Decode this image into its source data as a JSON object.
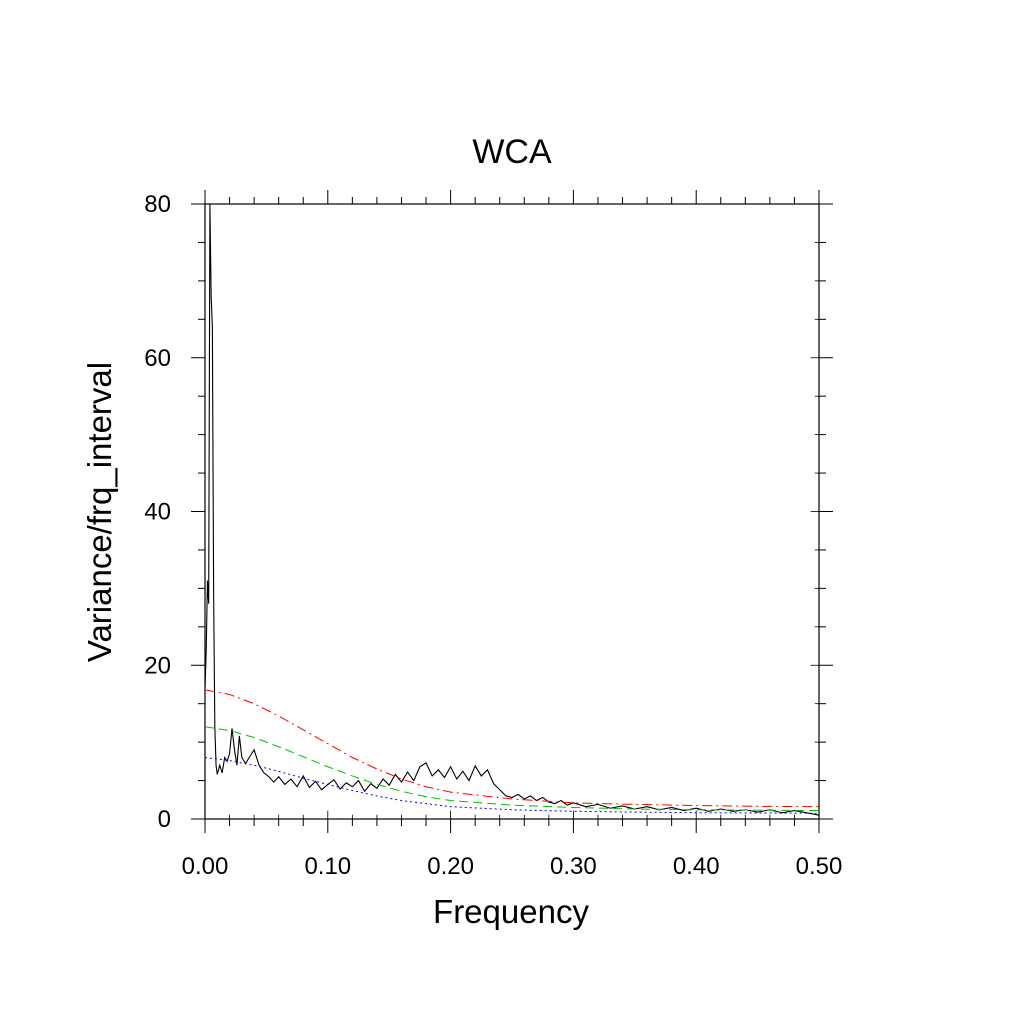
{
  "chart_data": {
    "type": "line",
    "title": "WCA",
    "xlabel": "Frequency",
    "ylabel": "Variance/frq_interval",
    "xlim": [
      0,
      0.5
    ],
    "ylim": [
      0,
      80
    ],
    "x_ticks": [
      0,
      0.1,
      0.2,
      0.3,
      0.4,
      0.5
    ],
    "x_tick_labels": [
      "0.00",
      "0.10",
      "0.20",
      "0.30",
      "0.40",
      "0.50"
    ],
    "y_ticks": [
      0,
      20,
      40,
      60,
      80
    ],
    "y_tick_labels": [
      "0",
      "20",
      "40",
      "60",
      "80"
    ],
    "legend": "none",
    "grid": false,
    "series": [
      {
        "color": "#000000",
        "style": "solid",
        "points": [
          [
            0.0,
            17
          ],
          [
            0.001,
            22
          ],
          [
            0.002,
            31
          ],
          [
            0.003,
            28
          ],
          [
            0.004,
            80
          ],
          [
            0.005,
            68
          ],
          [
            0.006,
            64
          ],
          [
            0.007,
            30
          ],
          [
            0.008,
            12
          ],
          [
            0.009,
            7
          ],
          [
            0.01,
            5.8
          ],
          [
            0.012,
            7
          ],
          [
            0.014,
            6
          ],
          [
            0.016,
            8
          ],
          [
            0.018,
            7.5
          ],
          [
            0.02,
            8.5
          ],
          [
            0.022,
            11.8
          ],
          [
            0.024,
            9
          ],
          [
            0.026,
            7
          ],
          [
            0.028,
            10.8
          ],
          [
            0.03,
            8
          ],
          [
            0.033,
            7.2
          ],
          [
            0.036,
            8
          ],
          [
            0.04,
            9
          ],
          [
            0.044,
            7
          ],
          [
            0.048,
            6
          ],
          [
            0.052,
            5.5
          ],
          [
            0.056,
            4.8
          ],
          [
            0.06,
            5.5
          ],
          [
            0.065,
            4.5
          ],
          [
            0.07,
            5.2
          ],
          [
            0.075,
            4.2
          ],
          [
            0.08,
            5.6
          ],
          [
            0.085,
            4.1
          ],
          [
            0.09,
            4.9
          ],
          [
            0.095,
            3.8
          ],
          [
            0.1,
            4.5
          ],
          [
            0.105,
            5.1
          ],
          [
            0.11,
            3.9
          ],
          [
            0.115,
            4.7
          ],
          [
            0.12,
            4.2
          ],
          [
            0.125,
            5.0
          ],
          [
            0.13,
            3.6
          ],
          [
            0.135,
            4.6
          ],
          [
            0.14,
            4.0
          ],
          [
            0.145,
            5.2
          ],
          [
            0.15,
            4.4
          ],
          [
            0.155,
            5.8
          ],
          [
            0.16,
            4.8
          ],
          [
            0.165,
            6.1
          ],
          [
            0.17,
            5.0
          ],
          [
            0.175,
            6.8
          ],
          [
            0.18,
            7.3
          ],
          [
            0.185,
            5.6
          ],
          [
            0.19,
            6.4
          ],
          [
            0.195,
            5.4
          ],
          [
            0.2,
            6.8
          ],
          [
            0.205,
            5.2
          ],
          [
            0.21,
            6.2
          ],
          [
            0.215,
            5.0
          ],
          [
            0.22,
            6.9
          ],
          [
            0.225,
            5.6
          ],
          [
            0.23,
            6.4
          ],
          [
            0.235,
            4.6
          ],
          [
            0.24,
            3.8
          ],
          [
            0.245,
            3.0
          ],
          [
            0.25,
            2.8
          ],
          [
            0.255,
            3.2
          ],
          [
            0.26,
            2.6
          ],
          [
            0.265,
            3.0
          ],
          [
            0.27,
            2.4
          ],
          [
            0.275,
            2.8
          ],
          [
            0.28,
            2.2
          ],
          [
            0.285,
            2.0
          ],
          [
            0.29,
            2.4
          ],
          [
            0.295,
            1.8
          ],
          [
            0.3,
            2.1
          ],
          [
            0.31,
            1.6
          ],
          [
            0.32,
            1.9
          ],
          [
            0.33,
            1.4
          ],
          [
            0.34,
            1.7
          ],
          [
            0.35,
            1.3
          ],
          [
            0.36,
            1.6
          ],
          [
            0.37,
            1.2
          ],
          [
            0.38,
            1.5
          ],
          [
            0.39,
            1.1
          ],
          [
            0.4,
            1.4
          ],
          [
            0.41,
            1.0
          ],
          [
            0.42,
            1.3
          ],
          [
            0.43,
            1.0
          ],
          [
            0.44,
            1.2
          ],
          [
            0.45,
            0.9
          ],
          [
            0.46,
            1.2
          ],
          [
            0.47,
            0.8
          ],
          [
            0.48,
            1.1
          ],
          [
            0.49,
            0.8
          ],
          [
            0.5,
            0.5
          ]
        ]
      },
      {
        "color": "#ff0000",
        "style": "dash-dot",
        "points": [
          [
            0.0,
            16.8
          ],
          [
            0.02,
            16.2
          ],
          [
            0.04,
            15.0
          ],
          [
            0.06,
            13.4
          ],
          [
            0.08,
            11.6
          ],
          [
            0.1,
            9.8
          ],
          [
            0.12,
            8.0
          ],
          [
            0.14,
            6.5
          ],
          [
            0.16,
            5.2
          ],
          [
            0.18,
            4.2
          ],
          [
            0.2,
            3.5
          ],
          [
            0.25,
            2.6
          ],
          [
            0.3,
            2.1
          ],
          [
            0.35,
            1.9
          ],
          [
            0.4,
            1.75
          ],
          [
            0.45,
            1.65
          ],
          [
            0.5,
            1.6
          ]
        ]
      },
      {
        "color": "#00c000",
        "style": "dashed",
        "points": [
          [
            0.0,
            12.0
          ],
          [
            0.02,
            11.5
          ],
          [
            0.04,
            10.6
          ],
          [
            0.06,
            9.4
          ],
          [
            0.08,
            8.1
          ],
          [
            0.1,
            6.8
          ],
          [
            0.12,
            5.6
          ],
          [
            0.14,
            4.5
          ],
          [
            0.16,
            3.6
          ],
          [
            0.18,
            2.9
          ],
          [
            0.2,
            2.4
          ],
          [
            0.25,
            1.8
          ],
          [
            0.3,
            1.5
          ],
          [
            0.35,
            1.3
          ],
          [
            0.4,
            1.2
          ],
          [
            0.45,
            1.15
          ],
          [
            0.5,
            1.1
          ]
        ]
      },
      {
        "color": "#0000ff",
        "style": "dotted",
        "points": [
          [
            0.0,
            8.0
          ],
          [
            0.02,
            7.6
          ],
          [
            0.04,
            7.0
          ],
          [
            0.06,
            6.2
          ],
          [
            0.08,
            5.3
          ],
          [
            0.1,
            4.5
          ],
          [
            0.12,
            3.7
          ],
          [
            0.14,
            3.0
          ],
          [
            0.16,
            2.4
          ],
          [
            0.18,
            2.0
          ],
          [
            0.2,
            1.6
          ],
          [
            0.25,
            1.2
          ],
          [
            0.3,
            1.0
          ],
          [
            0.35,
            0.9
          ],
          [
            0.4,
            0.82
          ],
          [
            0.45,
            0.78
          ],
          [
            0.5,
            0.75
          ]
        ]
      }
    ]
  }
}
